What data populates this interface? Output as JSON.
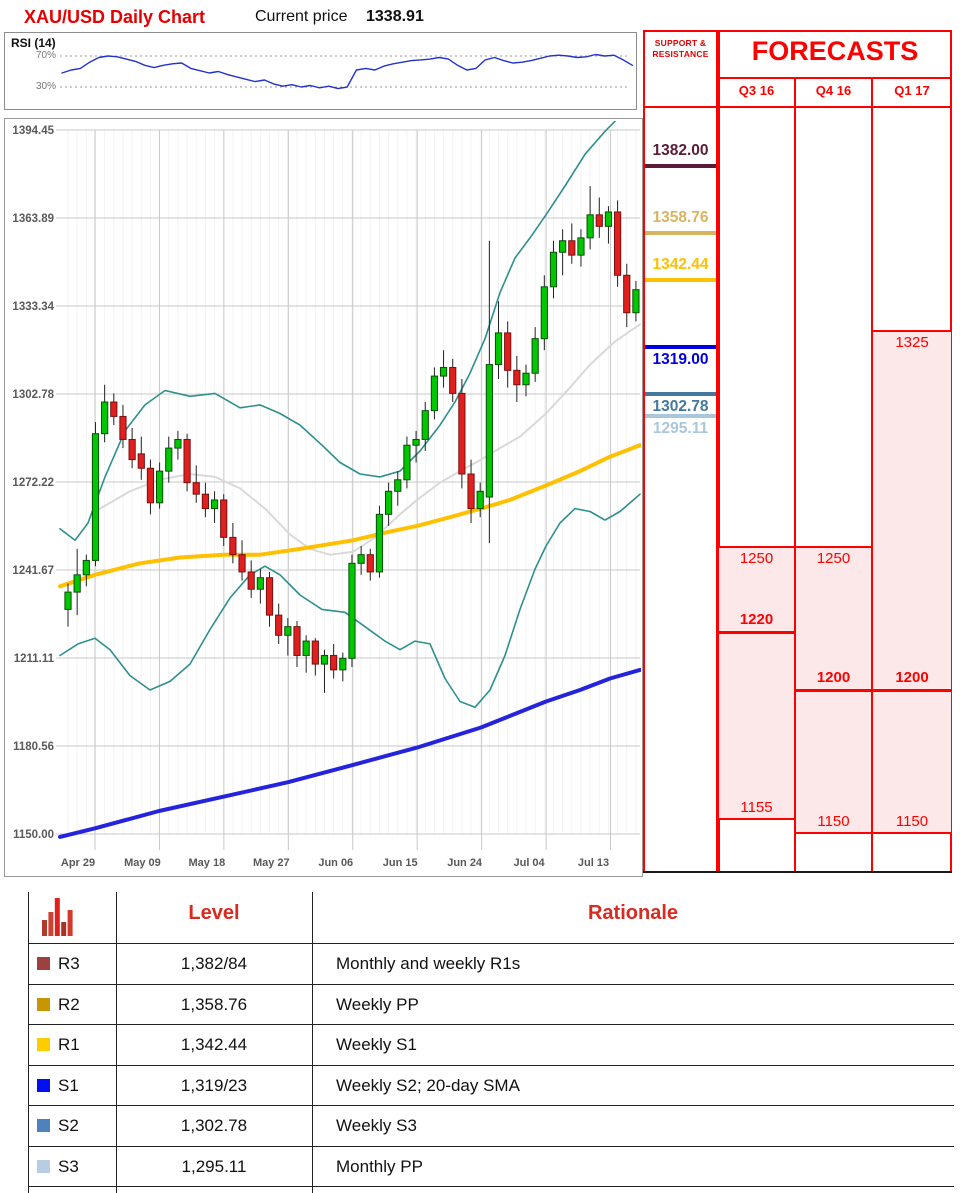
{
  "header": {
    "title": "XAU/USD Daily Chart",
    "current_price_label": "Current price",
    "current_price": "1338.91"
  },
  "rsi_panel": {
    "label": "RSI (14)",
    "tick_high": "70%",
    "tick_low": "30%"
  },
  "palette": {
    "accent_red": "#ff0000",
    "pink_band": "#fce8e8",
    "candle_up": "#00c800",
    "candle_down": "#e01f1f",
    "bollinger_teal": "#2e8f8f",
    "sma_yellow": "#ffc000",
    "sma_blue": "#2424dd",
    "sma20_grey": "#d9d9d9",
    "rsi_blue": "#2233cc"
  },
  "chart_data": {
    "type": "candlestick",
    "title": "XAU/USD Daily Chart",
    "y_ticks": [
      1394.45,
      1363.89,
      1333.34,
      1302.78,
      1272.22,
      1241.67,
      1211.11,
      1180.56,
      1150.0
    ],
    "x_ticks": [
      "Apr 29",
      "May 09",
      "May 18",
      "May 27",
      "Jun 06",
      "Jun 15",
      "Jun 24",
      "Jul 04",
      "Jul 13"
    ],
    "ylim": [
      1150.0,
      1394.45
    ],
    "grid": true,
    "candles_ohlc": [
      [
        1228,
        1237,
        1222,
        1234
      ],
      [
        1234,
        1249,
        1226,
        1240
      ],
      [
        1240,
        1247,
        1236,
        1245
      ],
      [
        1245,
        1293,
        1243,
        1289
      ],
      [
        1289,
        1306,
        1286,
        1300
      ],
      [
        1300,
        1303,
        1292,
        1295
      ],
      [
        1295,
        1299,
        1284,
        1287
      ],
      [
        1287,
        1291,
        1277,
        1280
      ],
      [
        1282,
        1288,
        1273,
        1277
      ],
      [
        1277,
        1280,
        1261,
        1265
      ],
      [
        1265,
        1279,
        1263,
        1276
      ],
      [
        1276,
        1288,
        1272,
        1284
      ],
      [
        1284,
        1290,
        1280,
        1287
      ],
      [
        1287,
        1289,
        1269,
        1272
      ],
      [
        1272,
        1278,
        1265,
        1268
      ],
      [
        1268,
        1272,
        1260,
        1263
      ],
      [
        1263,
        1269,
        1258,
        1266
      ],
      [
        1266,
        1268,
        1250,
        1253
      ],
      [
        1253,
        1258,
        1244,
        1247
      ],
      [
        1247,
        1252,
        1238,
        1241
      ],
      [
        1241,
        1245,
        1232,
        1235
      ],
      [
        1235,
        1242,
        1230,
        1239
      ],
      [
        1239,
        1241,
        1222,
        1226
      ],
      [
        1226,
        1230,
        1216,
        1219
      ],
      [
        1219,
        1225,
        1212,
        1222
      ],
      [
        1222,
        1224,
        1208,
        1212
      ],
      [
        1212,
        1219,
        1206,
        1217
      ],
      [
        1217,
        1218,
        1205,
        1209
      ],
      [
        1209,
        1214,
        1199,
        1212
      ],
      [
        1212,
        1216,
        1204,
        1207
      ],
      [
        1207,
        1213,
        1203,
        1211
      ],
      [
        1211,
        1247,
        1208,
        1244
      ],
      [
        1244,
        1250,
        1240,
        1247
      ],
      [
        1247,
        1249,
        1238,
        1241
      ],
      [
        1241,
        1264,
        1239,
        1261
      ],
      [
        1261,
        1272,
        1257,
        1269
      ],
      [
        1269,
        1276,
        1264,
        1273
      ],
      [
        1273,
        1288,
        1270,
        1285
      ],
      [
        1285,
        1290,
        1279,
        1287
      ],
      [
        1287,
        1300,
        1283,
        1297
      ],
      [
        1297,
        1312,
        1294,
        1309
      ],
      [
        1309,
        1318,
        1305,
        1312
      ],
      [
        1312,
        1315,
        1300,
        1303
      ],
      [
        1303,
        1308,
        1270,
        1275
      ],
      [
        1275,
        1280,
        1258,
        1263
      ],
      [
        1263,
        1272,
        1260,
        1269
      ],
      [
        1267,
        1356,
        1251,
        1313
      ],
      [
        1313,
        1335,
        1308,
        1324
      ],
      [
        1324,
        1328,
        1305,
        1311
      ],
      [
        1311,
        1316,
        1300,
        1306
      ],
      [
        1306,
        1313,
        1302,
        1310
      ],
      [
        1310,
        1326,
        1307,
        1322
      ],
      [
        1322,
        1344,
        1318,
        1340
      ],
      [
        1340,
        1356,
        1336,
        1352
      ],
      [
        1352,
        1360,
        1344,
        1356
      ],
      [
        1356,
        1362,
        1348,
        1351
      ],
      [
        1351,
        1360,
        1347,
        1357
      ],
      [
        1357,
        1375,
        1353,
        1365
      ],
      [
        1365,
        1371,
        1357,
        1361
      ],
      [
        1361,
        1368,
        1355,
        1366
      ],
      [
        1366,
        1370,
        1340,
        1344
      ],
      [
        1344,
        1348,
        1326,
        1331
      ],
      [
        1331,
        1342,
        1328,
        1339
      ]
    ],
    "overlays": {
      "sma_yellow": [
        [
          60,
          1236
        ],
        [
          95,
          1240
        ],
        [
          140,
          1244
        ],
        [
          180,
          1246
        ],
        [
          224,
          1247
        ],
        [
          260,
          1247
        ],
        [
          300,
          1249
        ],
        [
          353,
          1252
        ],
        [
          390,
          1255
        ],
        [
          417,
          1257
        ],
        [
          450,
          1260
        ],
        [
          481,
          1263
        ],
        [
          510,
          1266
        ],
        [
          546,
          1271
        ],
        [
          580,
          1276
        ],
        [
          610,
          1281
        ],
        [
          640,
          1285
        ]
      ],
      "sma_blue": [
        [
          60,
          1149
        ],
        [
          95,
          1152
        ],
        [
          159,
          1158
        ],
        [
          224,
          1163
        ],
        [
          288,
          1168
        ],
        [
          353,
          1174
        ],
        [
          417,
          1180
        ],
        [
          481,
          1187
        ],
        [
          546,
          1196
        ],
        [
          580,
          1200
        ],
        [
          610,
          1204
        ],
        [
          640,
          1207
        ]
      ],
      "sma20_grey": [
        [
          95,
          1262
        ],
        [
          130,
          1269
        ],
        [
          159,
          1273
        ],
        [
          190,
          1275
        ],
        [
          215,
          1274
        ],
        [
          240,
          1270
        ],
        [
          265,
          1263
        ],
        [
          290,
          1254
        ],
        [
          310,
          1249
        ],
        [
          330,
          1247
        ],
        [
          353,
          1248
        ],
        [
          375,
          1253
        ],
        [
          400,
          1261
        ],
        [
          417,
          1266
        ],
        [
          440,
          1272
        ],
        [
          460,
          1276
        ],
        [
          481,
          1280
        ],
        [
          500,
          1284
        ],
        [
          520,
          1288
        ],
        [
          546,
          1296
        ],
        [
          570,
          1305
        ],
        [
          590,
          1313
        ],
        [
          615,
          1321
        ],
        [
          640,
          1327
        ]
      ],
      "bollinger_upper": [
        [
          60,
          1256
        ],
        [
          75,
          1252
        ],
        [
          88,
          1258
        ],
        [
          105,
          1274
        ],
        [
          125,
          1290
        ],
        [
          145,
          1299
        ],
        [
          165,
          1304
        ],
        [
          190,
          1302
        ],
        [
          215,
          1303
        ],
        [
          240,
          1298
        ],
        [
          260,
          1299
        ],
        [
          280,
          1296
        ],
        [
          300,
          1292
        ],
        [
          322,
          1285
        ],
        [
          340,
          1279
        ],
        [
          360,
          1275
        ],
        [
          380,
          1274
        ],
        [
          400,
          1276
        ],
        [
          420,
          1283
        ],
        [
          440,
          1292
        ],
        [
          455,
          1300
        ],
        [
          470,
          1310
        ],
        [
          485,
          1322
        ],
        [
          500,
          1338
        ],
        [
          515,
          1350
        ],
        [
          530,
          1357
        ],
        [
          546,
          1365
        ],
        [
          565,
          1375
        ],
        [
          585,
          1386
        ],
        [
          605,
          1394
        ],
        [
          625,
          1401
        ]
      ],
      "bollinger_lower": [
        [
          60,
          1212
        ],
        [
          78,
          1216
        ],
        [
          95,
          1218
        ],
        [
          110,
          1214
        ],
        [
          130,
          1205
        ],
        [
          150,
          1200
        ],
        [
          170,
          1203
        ],
        [
          190,
          1209
        ],
        [
          210,
          1221
        ],
        [
          230,
          1232
        ],
        [
          250,
          1240
        ],
        [
          265,
          1243
        ],
        [
          280,
          1240
        ],
        [
          300,
          1233
        ],
        [
          322,
          1228
        ],
        [
          345,
          1227
        ],
        [
          365,
          1222
        ],
        [
          385,
          1217
        ],
        [
          400,
          1214
        ],
        [
          415,
          1217
        ],
        [
          430,
          1216
        ],
        [
          445,
          1204
        ],
        [
          460,
          1196
        ],
        [
          475,
          1194
        ],
        [
          490,
          1200
        ],
        [
          505,
          1212
        ],
        [
          520,
          1228
        ],
        [
          535,
          1242
        ],
        [
          546,
          1250
        ],
        [
          560,
          1258
        ],
        [
          575,
          1263
        ],
        [
          590,
          1262
        ],
        [
          605,
          1259
        ],
        [
          620,
          1262
        ],
        [
          640,
          1268
        ]
      ]
    },
    "rsi": {
      "label": "RSI (14)",
      "upper": 70,
      "lower": 30,
      "values": [
        48,
        52,
        54,
        62,
        68,
        70,
        69,
        66,
        63,
        58,
        55,
        58,
        60,
        61,
        54,
        51,
        48,
        50,
        46,
        43,
        40,
        37,
        39,
        34,
        31,
        33,
        30,
        32,
        29,
        31,
        28,
        30,
        52,
        54,
        52,
        57,
        60,
        62,
        64,
        65,
        66,
        68,
        66,
        58,
        52,
        54,
        65,
        68,
        64,
        61,
        62,
        64,
        67,
        70,
        71,
        70,
        68,
        69,
        72,
        70,
        71,
        65,
        58
      ]
    }
  },
  "support_resistance": {
    "header": "SUPPORT & RESISTANCE",
    "levels": [
      {
        "value": "1382.00",
        "price": 1382.0,
        "color": "#5c1b38",
        "label_position": "above"
      },
      {
        "value": "1358.76",
        "price": 1358.76,
        "color": "#d9b45f",
        "label_position": "above"
      },
      {
        "value": "1342.44",
        "price": 1342.44,
        "color": "#ffc000",
        "label_position": "above"
      },
      {
        "value": "1319.00",
        "price": 1319.0,
        "color": "#0000e0",
        "label_position": "below"
      },
      {
        "value": "1302.78",
        "price": 1302.78,
        "color": "#44789e",
        "label_position": "below"
      },
      {
        "value": "1295.11",
        "price": 1295.11,
        "color": "#a8c6dc",
        "label_position": "below"
      }
    ]
  },
  "forecasts": {
    "title": "FORECASTS",
    "columns": [
      {
        "label": "Q3 16",
        "range_top": 1250,
        "pivot": 1220,
        "range_bottom": 1155
      },
      {
        "label": "Q4 16",
        "range_top": 1250,
        "pivot": 1200,
        "range_bottom": 1150
      },
      {
        "label": "Q1 17",
        "range_top": 1325,
        "pivot": 1200,
        "range_bottom": 1150
      }
    ]
  },
  "levels_table": {
    "level_header": "Level",
    "rationale_header": "Rationale",
    "icon_bars": [
      16,
      24,
      38,
      14,
      26
    ],
    "icon_bar_colors": [
      "#b03a2e",
      "#cb4335",
      "#e01f1f",
      "#a93226",
      "#d0392b"
    ],
    "rows": [
      {
        "id": "R3",
        "color": "#9c4040",
        "level": "1,382/84",
        "rationale": "Monthly and weekly R1s"
      },
      {
        "id": "R2",
        "color": "#c79600",
        "level": "1,358.76",
        "rationale": "Weekly PP"
      },
      {
        "id": "R1",
        "color": "#ffcc00",
        "level": "1,342.44",
        "rationale": "Weekly S1"
      },
      {
        "id": "S1",
        "color": "#0010f0",
        "level": "1,319/23",
        "rationale": "Weekly S2; 20-day SMA"
      },
      {
        "id": "S2",
        "color": "#4f81bd",
        "level": "1,302.78",
        "rationale": "Weekly S3"
      },
      {
        "id": "S3",
        "color": "#b8cce4",
        "level": "1,295.11",
        "rationale": "Monthly PP"
      }
    ]
  }
}
